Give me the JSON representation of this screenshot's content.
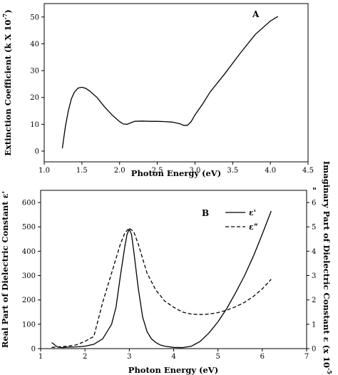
{
  "chart_data": [
    {
      "id": "A",
      "type": "line",
      "panel_label": "A",
      "xlabel": "Photon Energy (eV)",
      "ylabel_main": "Extinction Coefficient (k X 10",
      "ylabel_sup": "-7",
      "ylabel_end": ")",
      "xlim": [
        1.0,
        4.5
      ],
      "ylim": [
        -4,
        55
      ],
      "xticks": [
        1.0,
        1.5,
        2.0,
        2.5,
        3.0,
        3.5,
        4.0,
        4.5
      ],
      "xtick_labels": [
        "1.0",
        "1.5",
        "2.0",
        "2.5",
        "3.0",
        "3.5",
        "4.0",
        "4.5"
      ],
      "yticks": [
        0,
        10,
        20,
        30,
        40,
        50
      ],
      "ytick_labels": [
        "0",
        "10",
        "20",
        "30",
        "40",
        "50"
      ],
      "series": [
        {
          "style": "solid",
          "x": [
            1.24,
            1.28,
            1.32,
            1.36,
            1.4,
            1.45,
            1.5,
            1.55,
            1.6,
            1.7,
            1.8,
            1.9,
            2.0,
            2.05,
            2.1,
            2.15,
            2.2,
            2.3,
            2.4,
            2.5,
            2.6,
            2.7,
            2.8,
            2.85,
            2.9,
            2.95,
            3.0,
            3.1,
            3.2,
            3.4,
            3.6,
            3.8,
            4.0,
            4.1
          ],
          "y": [
            1,
            9,
            15,
            19.5,
            22,
            23.5,
            23.8,
            23.4,
            22.5,
            20,
            16.5,
            13.5,
            11,
            10.1,
            10,
            10.6,
            11.1,
            11.2,
            11.1,
            11.1,
            11,
            10.8,
            10.2,
            9.6,
            9.6,
            11,
            13.5,
            17.5,
            22,
            29,
            36.5,
            43.5,
            48.5,
            50.2
          ]
        }
      ]
    },
    {
      "id": "B",
      "type": "line",
      "panel_label": "B",
      "xlabel": "Photon Energy (eV)",
      "ylabel_left": "Real Part of Dielectric Constant ε'",
      "ylabel_right_main": "Imaginary Part of Dielectric Constant ε (x 10",
      "ylabel_right_sup": "-5",
      "ylabel_right_end": ")",
      "ylabel_right_mark": "\"",
      "xlim": [
        1,
        7
      ],
      "ylim_left": [
        0,
        650
      ],
      "ylim_right": [
        0,
        6.5
      ],
      "xticks": [
        1,
        2,
        3,
        4,
        5,
        6,
        7
      ],
      "xtick_labels": [
        "1",
        "2",
        "3",
        "4",
        "5",
        "6",
        "7"
      ],
      "yticks_left": [
        0,
        100,
        200,
        300,
        400,
        500,
        600
      ],
      "ytick_labels_left": [
        "0",
        "100",
        "200",
        "300",
        "400",
        "500",
        "600"
      ],
      "yticks_right": [
        0,
        1,
        2,
        3,
        4,
        5,
        6
      ],
      "ytick_labels_right": [
        "0",
        "1",
        "2",
        "3",
        "4",
        "5",
        "6"
      ],
      "legend_position": "top-right",
      "series": [
        {
          "name": "ε'",
          "axis": "left",
          "style": "solid",
          "x": [
            1.25,
            1.3,
            1.35,
            1.4,
            1.5,
            1.6,
            1.8,
            2.0,
            2.2,
            2.4,
            2.6,
            2.7,
            2.8,
            2.9,
            2.95,
            3.0,
            3.05,
            3.1,
            3.2,
            3.3,
            3.4,
            3.5,
            3.6,
            3.7,
            3.8,
            4.0,
            4.2,
            4.4,
            4.6,
            4.8,
            5.0,
            5.2,
            5.4,
            5.6,
            5.8,
            6.0,
            6.2
          ],
          "y": [
            25,
            18,
            10,
            6,
            4,
            6,
            7,
            10,
            18,
            40,
            100,
            170,
            300,
            420,
            470,
            490,
            470,
            400,
            250,
            130,
            70,
            40,
            25,
            15,
            10,
            5,
            4,
            10,
            30,
            65,
            110,
            165,
            230,
            300,
            380,
            470,
            565
          ]
        },
        {
          "name": "εˮ",
          "axis": "right",
          "style": "dashed",
          "x": [
            1.25,
            1.4,
            1.6,
            1.8,
            2.0,
            2.2,
            2.3,
            2.4,
            2.5,
            2.6,
            2.7,
            2.8,
            2.9,
            3.0,
            3.1,
            3.2,
            3.3,
            3.4,
            3.6,
            3.8,
            4.0,
            4.2,
            4.4,
            4.6,
            4.8,
            5.0,
            5.2,
            5.4,
            5.6,
            5.8,
            6.0,
            6.2
          ],
          "y": [
            0.05,
            0.07,
            0.1,
            0.15,
            0.3,
            0.5,
            1.2,
            1.9,
            2.5,
            3.1,
            3.7,
            4.3,
            4.75,
            4.95,
            4.8,
            4.3,
            3.7,
            3.1,
            2.4,
            1.95,
            1.7,
            1.5,
            1.42,
            1.4,
            1.42,
            1.48,
            1.58,
            1.72,
            1.9,
            2.15,
            2.45,
            2.85
          ]
        }
      ]
    }
  ]
}
